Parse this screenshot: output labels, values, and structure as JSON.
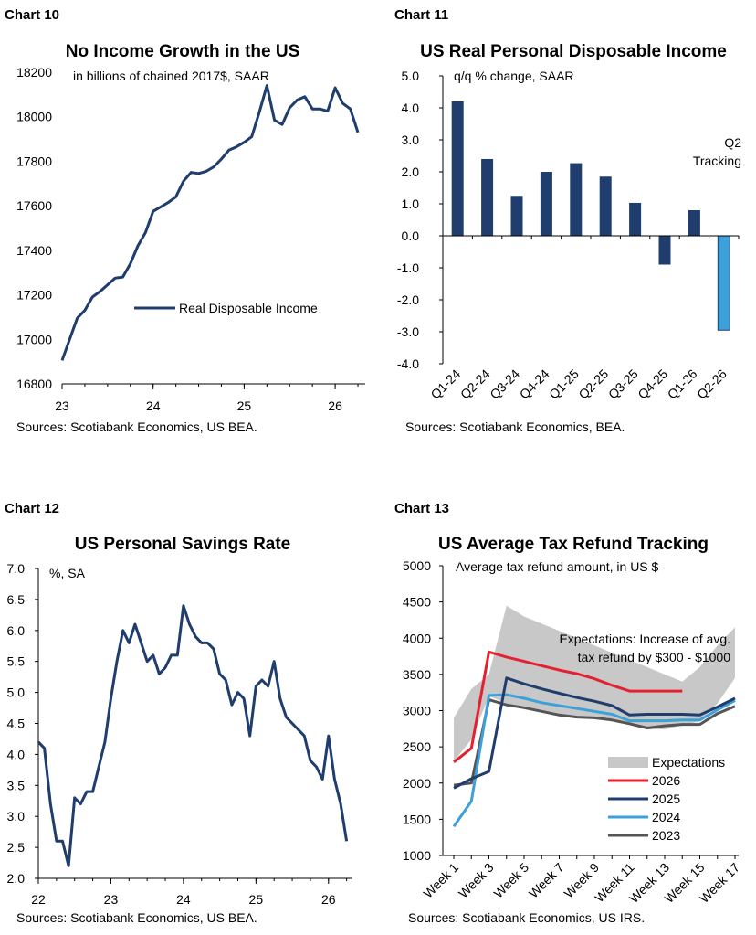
{
  "chart_data": [
    {
      "chart_label": "Chart 10",
      "title": "No Income Growth in the US",
      "subtitle": "in billions of chained 2017$, SAAR",
      "type": "line",
      "ylim": [
        16800,
        18200
      ],
      "yticks": [
        16800,
        17000,
        17200,
        17400,
        17600,
        17800,
        18000,
        18200
      ],
      "xlim": [
        23,
        26.33
      ],
      "xticks": [
        23,
        24,
        25,
        26
      ],
      "legend": {
        "position": "center-right"
      },
      "series": [
        {
          "name": "Real Disposable Income",
          "color": "#1f3d6d",
          "x": [
            23.0,
            23.083,
            23.167,
            23.25,
            23.333,
            23.417,
            23.5,
            23.583,
            23.667,
            23.75,
            23.833,
            23.917,
            24.0,
            24.083,
            24.167,
            24.25,
            24.333,
            24.417,
            24.5,
            24.583,
            24.667,
            24.75,
            24.833,
            24.917,
            25.0,
            25.083,
            25.167,
            25.25,
            25.333,
            25.417,
            25.5,
            25.583,
            25.667,
            25.75,
            25.833,
            25.917,
            26.0,
            26.083,
            26.167,
            26.25
          ],
          "y": [
            16905,
            17000,
            17095,
            17130,
            17190,
            17215,
            17245,
            17275,
            17280,
            17340,
            17420,
            17480,
            17575,
            17595,
            17615,
            17640,
            17710,
            17750,
            17745,
            17755,
            17775,
            17810,
            17850,
            17865,
            17885,
            17910,
            18020,
            18140,
            17985,
            17965,
            18040,
            18075,
            18090,
            18035,
            18035,
            18025,
            18130,
            18060,
            18035,
            17930
          ]
        }
      ],
      "source": "Sources: Scotiabank Economics, US BEA."
    },
    {
      "chart_label": "Chart 11",
      "title": "US Real Personal Disposable Income",
      "subtitle": "q/q % change, SAAR",
      "type": "bar",
      "ylim": [
        -4.0,
        5.0
      ],
      "yticks": [
        "5.0",
        "4.0",
        "3.0",
        "2.0",
        "1.0",
        "0.0",
        "-1.0",
        "-2.0",
        "-3.0",
        "-4.0"
      ],
      "categories": [
        "Q1-24",
        "Q2-24",
        "Q3-24",
        "Q4-24",
        "Q1-25",
        "Q2-25",
        "Q3-25",
        "Q4-25",
        "Q1-26",
        "Q2-26"
      ],
      "values": [
        4.2,
        2.4,
        1.25,
        2.0,
        2.27,
        1.85,
        1.03,
        -0.9,
        0.8,
        -2.95
      ],
      "colors": {
        "actual": "#1f3d6d",
        "tracking": "#3ea0d8"
      },
      "annotation": [
        "Q2",
        "Tracking"
      ],
      "source": "Sources: Scotiabank Economics, BEA."
    },
    {
      "chart_label": "Chart 12",
      "title": "US Personal Savings Rate",
      "subtitle": "%, SA",
      "type": "line",
      "ylim": [
        2.0,
        7.0
      ],
      "yticks": [
        "7.0",
        "6.5",
        "6.0",
        "5.5",
        "5.0",
        "4.5",
        "4.0",
        "3.5",
        "3.0",
        "2.5",
        "2.0"
      ],
      "xlim": [
        22,
        26.33
      ],
      "xticks": [
        22,
        23,
        24,
        25,
        26
      ],
      "series": [
        {
          "name": "",
          "color": "#1f3d6d",
          "x": [
            22.0,
            22.083,
            22.167,
            22.25,
            22.333,
            22.417,
            22.5,
            22.583,
            22.667,
            22.75,
            22.833,
            22.917,
            23.0,
            23.083,
            23.167,
            23.25,
            23.333,
            23.417,
            23.5,
            23.583,
            23.667,
            23.75,
            23.833,
            23.917,
            24.0,
            24.083,
            24.167,
            24.25,
            24.333,
            24.417,
            24.5,
            24.583,
            24.667,
            24.75,
            24.833,
            24.917,
            25.0,
            25.083,
            25.167,
            25.25,
            25.333,
            25.417,
            25.5,
            25.583,
            25.667,
            25.75,
            25.833,
            25.917,
            26.0,
            26.083,
            26.167,
            26.25
          ],
          "y": [
            4.2,
            4.1,
            3.2,
            2.6,
            2.6,
            2.2,
            3.3,
            3.2,
            3.4,
            3.4,
            3.8,
            4.2,
            4.9,
            5.5,
            6.0,
            5.8,
            6.1,
            5.8,
            5.5,
            5.6,
            5.3,
            5.4,
            5.6,
            5.6,
            6.4,
            6.1,
            5.9,
            5.8,
            5.8,
            5.7,
            5.3,
            5.2,
            4.8,
            5.0,
            4.9,
            4.3,
            5.1,
            5.2,
            5.1,
            5.5,
            4.9,
            4.6,
            4.5,
            4.4,
            4.3,
            3.9,
            3.8,
            3.6,
            4.3,
            3.6,
            3.2,
            2.6
          ]
        }
      ],
      "source": "Sources: Scotiabank Economics, US BEA."
    },
    {
      "chart_label": "Chart 13",
      "title": "US Average Tax Refund Tracking",
      "subtitle": "Average tax refund amount, in US $",
      "type": "line",
      "ylim": [
        1000,
        5000
      ],
      "yticks": [
        5000,
        4500,
        4000,
        3500,
        3000,
        2500,
        2000,
        1500,
        1000
      ],
      "xlim": [
        1,
        17
      ],
      "xtick_labels": [
        "Week 1",
        "Week 3",
        "Week 5",
        "Week 7",
        "Week 9",
        "Week 11",
        "Week 13",
        "Week 15",
        "Week 17"
      ],
      "xtick_values": [
        1,
        3,
        5,
        7,
        9,
        11,
        13,
        15,
        17
      ],
      "annotation": [
        "Expectations: Increase of avg.",
        "tax refund by $300 - $1000"
      ],
      "expectations_band": {
        "name": "Expectations",
        "color": "#c8c8c8",
        "x": [
          1,
          2,
          3,
          4,
          5,
          6,
          7,
          8,
          9,
          10,
          11,
          12,
          13,
          14,
          15,
          16,
          17
        ],
        "lower": [
          2300,
          2600,
          3200,
          3100,
          3050,
          3000,
          2950,
          2920,
          2900,
          2850,
          2800,
          2740,
          2740,
          2800,
          2850,
          3100,
          3450
        ],
        "upper": [
          2900,
          3300,
          3500,
          4450,
          4300,
          4200,
          4100,
          4000,
          3900,
          3800,
          3700,
          3600,
          3500,
          3400,
          3600,
          3900,
          4150
        ]
      },
      "series": [
        {
          "name": "2026",
          "color": "#e42131",
          "x": [
            1,
            2,
            3,
            4,
            5,
            6,
            7,
            8,
            9,
            10,
            11,
            12,
            13,
            14
          ],
          "y": [
            2290,
            2480,
            3810,
            3740,
            3680,
            3620,
            3560,
            3510,
            3440,
            3350,
            3270,
            3270,
            3270,
            3270
          ]
        },
        {
          "name": "2025",
          "color": "#1f3d6d",
          "x": [
            1,
            2,
            3,
            4,
            5,
            6,
            7,
            8,
            9,
            10,
            11,
            12,
            13,
            14,
            15,
            16,
            17
          ],
          "y": [
            1930,
            2060,
            2160,
            3450,
            3370,
            3300,
            3240,
            3180,
            3130,
            3070,
            2940,
            2950,
            2950,
            2950,
            2940,
            3050,
            3170
          ]
        },
        {
          "name": "2024",
          "color": "#3ea0d8",
          "x": [
            1,
            2,
            3,
            4,
            5,
            6,
            7,
            8,
            9,
            10,
            11,
            12,
            13,
            14,
            15,
            16,
            17
          ],
          "y": [
            1400,
            1750,
            3210,
            3220,
            3170,
            3110,
            3070,
            3030,
            2990,
            2950,
            2860,
            2860,
            2860,
            2870,
            2870,
            3010,
            3140
          ]
        },
        {
          "name": "2023",
          "color": "#555555",
          "x": [
            1,
            2,
            3,
            4,
            5,
            6,
            7,
            8,
            9,
            10,
            11,
            12,
            13,
            14,
            15,
            16,
            17
          ],
          "y": [
            1970,
            2000,
            3150,
            3080,
            3040,
            2990,
            2940,
            2910,
            2900,
            2870,
            2820,
            2760,
            2790,
            2810,
            2810,
            2960,
            3060
          ]
        }
      ],
      "legend_order": [
        "Expectations",
        "2026",
        "2025",
        "2024",
        "2023"
      ],
      "legend": {
        "position": "lower-right"
      },
      "source": "Sources: Scotiabank Economics, US IRS."
    }
  ]
}
